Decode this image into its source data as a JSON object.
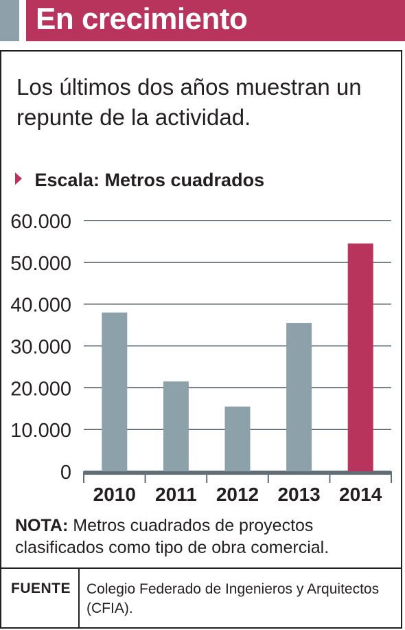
{
  "header": {
    "title": "En crecimiento"
  },
  "subtitle": "Los últimos dos años muestran un repunte de la actividad.",
  "scale_label": "Escala: Metros cuadrados",
  "note": {
    "label": "NOTA:",
    "text": " Metros cuadrados de proyectos clasificados como tipo de obra comercial."
  },
  "source": {
    "label": "FUENTE",
    "text": "Colegio Federado de Ingenieros y Arquitectos (CFIA)."
  },
  "colors": {
    "accent": "#b8345d",
    "bar": "#8da1aa",
    "text": "#231f20"
  },
  "chart_data": {
    "type": "bar",
    "categories": [
      "2010",
      "2011",
      "2012",
      "2013",
      "2014"
    ],
    "values": [
      38000,
      21500,
      15500,
      35500,
      54500
    ],
    "highlight_index": 4,
    "yticks": [
      0,
      10000,
      20000,
      30000,
      40000,
      50000,
      60000
    ],
    "ytick_labels": [
      "0",
      "10.000",
      "20.000",
      "30.000",
      "40.000",
      "50.000",
      "60.000"
    ],
    "ylim": [
      0,
      60000
    ],
    "title": "",
    "xlabel": "",
    "ylabel": "Escala: Metros cuadrados",
    "grid": true,
    "legend": "none"
  }
}
